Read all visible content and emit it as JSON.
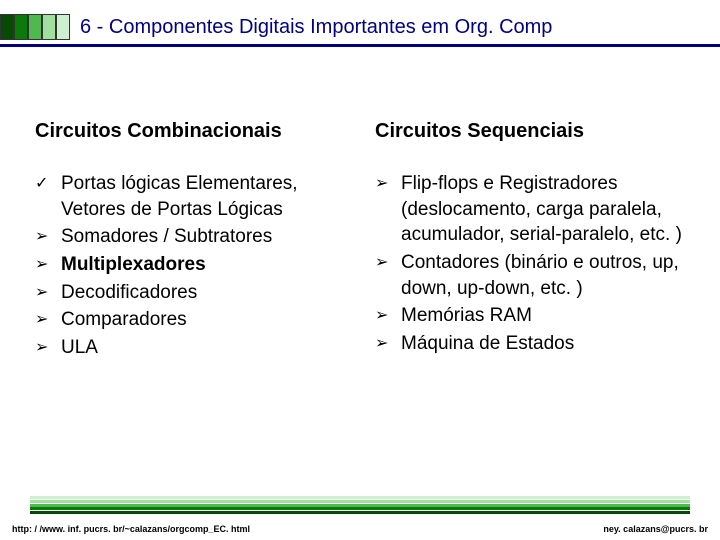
{
  "header": {
    "title": "6 - Componentes Digitais Importantes em Org. Comp",
    "block_colors": [
      "#064a06",
      "#0a7a0a",
      "#4fb84f",
      "#9fe09f",
      "#cff0cf"
    ],
    "underline_color": "#000080"
  },
  "columns": {
    "left": {
      "heading": "Circuitos Combinacionais",
      "items": [
        {
          "bullet": "✓",
          "text": "Portas lógicas Elementares, Vetores de Portas Lógicas",
          "bold": false
        },
        {
          "bullet": "➢",
          "text": "Somadores / Subtratores",
          "bold": false
        },
        {
          "bullet": "➢",
          "text": "Multiplexadores",
          "bold": true
        },
        {
          "bullet": "➢",
          "text": "Decodificadores",
          "bold": false
        },
        {
          "bullet": "➢",
          "text": "Comparadores",
          "bold": false
        },
        {
          "bullet": "➢",
          "text": "ULA",
          "bold": false
        }
      ]
    },
    "right": {
      "heading": "Circuitos Sequenciais",
      "items": [
        {
          "bullet": "➢",
          "text": "Flip-flops e Registradores (deslocamento, carga paralela, acumulador, serial-paralelo, etc. )",
          "bold": false
        },
        {
          "bullet": "➢",
          "text": "Contadores (binário e outros, up, down, up-down, etc. )",
          "bold": false
        },
        {
          "bullet": "➢",
          "text": "Memórias RAM",
          "bold": false
        },
        {
          "bullet": "➢",
          "text": "Máquina de Estados",
          "bold": false
        }
      ]
    }
  },
  "footer": {
    "stripe_colors": [
      "#cff0cf",
      "#9fe09f",
      "#4fb84f",
      "#0a7a0a",
      "#064a06"
    ],
    "left_text": "http: / /www. inf. pucrs. br/~calazans/orgcomp_EC. html",
    "right_text": "ney. calazans@pucrs. br"
  }
}
